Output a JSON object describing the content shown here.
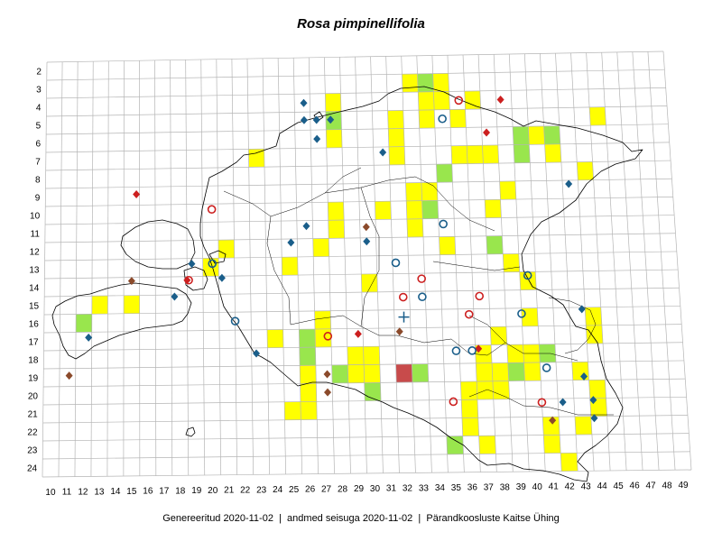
{
  "title": "Rosa pimpinellifolia",
  "footer": {
    "generated": "Genereeritud 2020-11-02",
    "data_state": "andmed seisuga 2020-11-02",
    "publisher": "Pärandkoosluste Kaitse Ühing"
  },
  "grid": {
    "row_labels": [
      "2",
      "3",
      "4",
      "5",
      "6",
      "7",
      "8",
      "9",
      "10",
      "11",
      "12",
      "13",
      "14",
      "15",
      "16",
      "17",
      "18",
      "19",
      "20",
      "21",
      "22",
      "23",
      "24"
    ],
    "col_labels": [
      "10",
      "11",
      "12",
      "13",
      "14",
      "15",
      "16",
      "17",
      "18",
      "19",
      "20",
      "21",
      "22",
      "23",
      "24",
      "25",
      "26",
      "27",
      "28",
      "29",
      "30",
      "31",
      "32",
      "33",
      "34",
      "35",
      "36",
      "37",
      "38",
      "39",
      "40",
      "41",
      "42",
      "43",
      "44",
      "45",
      "46",
      "47",
      "48",
      "49"
    ]
  },
  "colors": {
    "yellow": "#ffff00",
    "green": "#99e64d",
    "red_cell": "#c84b4b",
    "blue": "#1a5e8a",
    "red": "#cc1f1f",
    "brown": "#8b4a2b",
    "grid_line": "#b5b5b5",
    "outline": "#000000"
  },
  "cells": [
    {
      "col": 34,
      "row": 3,
      "fill": "green"
    },
    {
      "col": 35,
      "row": 3,
      "fill": "yellow"
    },
    {
      "col": 33,
      "row": 3,
      "fill": "yellow"
    },
    {
      "col": 28,
      "row": 4,
      "fill": "yellow"
    },
    {
      "col": 37,
      "row": 4,
      "fill": "yellow"
    },
    {
      "col": 34,
      "row": 4,
      "fill": "yellow"
    },
    {
      "col": 35,
      "row": 4,
      "fill": "yellow"
    },
    {
      "col": 28,
      "row": 5,
      "fill": "green"
    },
    {
      "col": 32,
      "row": 5,
      "fill": "yellow"
    },
    {
      "col": 34,
      "row": 5,
      "fill": "yellow"
    },
    {
      "col": 36,
      "row": 5,
      "fill": "yellow"
    },
    {
      "col": 45,
      "row": 5,
      "fill": "yellow"
    },
    {
      "col": 28,
      "row": 6,
      "fill": "yellow"
    },
    {
      "col": 32,
      "row": 6,
      "fill": "yellow"
    },
    {
      "col": 41,
      "row": 6,
      "fill": "yellow"
    },
    {
      "col": 42,
      "row": 6,
      "fill": "green"
    },
    {
      "col": 40,
      "row": 6,
      "fill": "green"
    },
    {
      "col": 23,
      "row": 7,
      "fill": "yellow"
    },
    {
      "col": 32,
      "row": 7,
      "fill": "yellow"
    },
    {
      "col": 36,
      "row": 7,
      "fill": "yellow"
    },
    {
      "col": 37,
      "row": 7,
      "fill": "yellow"
    },
    {
      "col": 38,
      "row": 7,
      "fill": "yellow"
    },
    {
      "col": 40,
      "row": 7,
      "fill": "green"
    },
    {
      "col": 42,
      "row": 7,
      "fill": "yellow"
    },
    {
      "col": 35,
      "row": 8,
      "fill": "green"
    },
    {
      "col": 44,
      "row": 8,
      "fill": "yellow"
    },
    {
      "col": 33,
      "row": 9,
      "fill": "yellow"
    },
    {
      "col": 34,
      "row": 9,
      "fill": "yellow"
    },
    {
      "col": 39,
      "row": 9,
      "fill": "yellow"
    },
    {
      "col": 28,
      "row": 10,
      "fill": "yellow"
    },
    {
      "col": 31,
      "row": 10,
      "fill": "yellow"
    },
    {
      "col": 33,
      "row": 10,
      "fill": "yellow"
    },
    {
      "col": 34,
      "row": 10,
      "fill": "green"
    },
    {
      "col": 38,
      "row": 10,
      "fill": "yellow"
    },
    {
      "col": 28,
      "row": 11,
      "fill": "yellow"
    },
    {
      "col": 33,
      "row": 11,
      "fill": "yellow"
    },
    {
      "col": 21,
      "row": 12,
      "fill": "yellow"
    },
    {
      "col": 27,
      "row": 12,
      "fill": "yellow"
    },
    {
      "col": 35,
      "row": 12,
      "fill": "yellow"
    },
    {
      "col": 38,
      "row": 12,
      "fill": "green"
    },
    {
      "col": 20,
      "row": 13,
      "fill": "yellow"
    },
    {
      "col": 25,
      "row": 13,
      "fill": "yellow"
    },
    {
      "col": 39,
      "row": 13,
      "fill": "yellow"
    },
    {
      "col": 30,
      "row": 14,
      "fill": "yellow"
    },
    {
      "col": 40,
      "row": 14,
      "fill": "yellow"
    },
    {
      "col": 13,
      "row": 15,
      "fill": "yellow"
    },
    {
      "col": 15,
      "row": 15,
      "fill": "yellow"
    },
    {
      "col": 12,
      "row": 16,
      "fill": "green"
    },
    {
      "col": 27,
      "row": 16,
      "fill": "yellow"
    },
    {
      "col": 40,
      "row": 16,
      "fill": "yellow"
    },
    {
      "col": 44,
      "row": 16,
      "fill": "yellow"
    },
    {
      "col": 24,
      "row": 17,
      "fill": "yellow"
    },
    {
      "col": 26,
      "row": 17,
      "fill": "green"
    },
    {
      "col": 27,
      "row": 17,
      "fill": "yellow"
    },
    {
      "col": 38,
      "row": 17,
      "fill": "yellow"
    },
    {
      "col": 44,
      "row": 17,
      "fill": "yellow"
    },
    {
      "col": 26,
      "row": 18,
      "fill": "green"
    },
    {
      "col": 29,
      "row": 18,
      "fill": "yellow"
    },
    {
      "col": 30,
      "row": 18,
      "fill": "yellow"
    },
    {
      "col": 37,
      "row": 18,
      "fill": "yellow"
    },
    {
      "col": 39,
      "row": 18,
      "fill": "yellow"
    },
    {
      "col": 40,
      "row": 18,
      "fill": "yellow"
    },
    {
      "col": 41,
      "row": 18,
      "fill": "green"
    },
    {
      "col": 26,
      "row": 19,
      "fill": "yellow"
    },
    {
      "col": 28,
      "row": 19,
      "fill": "green"
    },
    {
      "col": 29,
      "row": 19,
      "fill": "yellow"
    },
    {
      "col": 30,
      "row": 19,
      "fill": "yellow"
    },
    {
      "col": 32,
      "row": 19,
      "fill": "red_cell"
    },
    {
      "col": 33,
      "row": 19,
      "fill": "green"
    },
    {
      "col": 37,
      "row": 19,
      "fill": "yellow"
    },
    {
      "col": 38,
      "row": 19,
      "fill": "yellow"
    },
    {
      "col": 39,
      "row": 19,
      "fill": "green"
    },
    {
      "col": 40,
      "row": 19,
      "fill": "yellow"
    },
    {
      "col": 43,
      "row": 19,
      "fill": "yellow"
    },
    {
      "col": 26,
      "row": 20,
      "fill": "yellow"
    },
    {
      "col": 30,
      "row": 20,
      "fill": "green"
    },
    {
      "col": 36,
      "row": 20,
      "fill": "yellow"
    },
    {
      "col": 37,
      "row": 20,
      "fill": "yellow"
    },
    {
      "col": 38,
      "row": 20,
      "fill": "yellow"
    },
    {
      "col": 44,
      "row": 20,
      "fill": "yellow"
    },
    {
      "col": 25,
      "row": 21,
      "fill": "yellow"
    },
    {
      "col": 26,
      "row": 21,
      "fill": "yellow"
    },
    {
      "col": 36,
      "row": 21,
      "fill": "yellow"
    },
    {
      "col": 44,
      "row": 21,
      "fill": "yellow"
    },
    {
      "col": 36,
      "row": 22,
      "fill": "yellow"
    },
    {
      "col": 41,
      "row": 22,
      "fill": "yellow"
    },
    {
      "col": 43,
      "row": 22,
      "fill": "yellow"
    },
    {
      "col": 35,
      "row": 23,
      "fill": "green"
    },
    {
      "col": 37,
      "row": 23,
      "fill": "yellow"
    },
    {
      "col": 41,
      "row": 23,
      "fill": "yellow"
    },
    {
      "col": 42,
      "row": 24,
      "fill": "yellow"
    }
  ],
  "markers": [
    {
      "col": 26.6,
      "row": 4.5,
      "shape": "diamond",
      "color": "blue"
    },
    {
      "col": 26.6,
      "row": 5.45,
      "shape": "diamond",
      "color": "blue"
    },
    {
      "col": 27.4,
      "row": 5.45,
      "shape": "diamond",
      "color": "blue"
    },
    {
      "col": 28.3,
      "row": 5.45,
      "shape": "diamond",
      "color": "blue"
    },
    {
      "col": 27.4,
      "row": 6.5,
      "shape": "diamond",
      "color": "blue"
    },
    {
      "col": 31.6,
      "row": 7.3,
      "shape": "diamond",
      "color": "blue"
    },
    {
      "col": 43.4,
      "row": 9.2,
      "shape": "diamond",
      "color": "blue"
    },
    {
      "col": 26.6,
      "row": 11.3,
      "shape": "diamond",
      "color": "blue"
    },
    {
      "col": 25.6,
      "row": 12.2,
      "shape": "diamond",
      "color": "blue"
    },
    {
      "col": 30.4,
      "row": 12.2,
      "shape": "diamond",
      "color": "blue"
    },
    {
      "col": 19.3,
      "row": 13.3,
      "shape": "diamond",
      "color": "blue"
    },
    {
      "col": 21.2,
      "row": 14.1,
      "shape": "diamond",
      "color": "blue"
    },
    {
      "col": 18.2,
      "row": 15.1,
      "shape": "diamond",
      "color": "blue"
    },
    {
      "col": 12.8,
      "row": 17.3,
      "shape": "diamond",
      "color": "blue"
    },
    {
      "col": 23.3,
      "row": 18.3,
      "shape": "diamond",
      "color": "blue"
    },
    {
      "col": 43.8,
      "row": 16.1,
      "shape": "diamond",
      "color": "blue"
    },
    {
      "col": 43.7,
      "row": 19.8,
      "shape": "diamond",
      "color": "blue"
    },
    {
      "col": 42.3,
      "row": 21.2,
      "shape": "diamond",
      "color": "blue"
    },
    {
      "col": 44.2,
      "row": 21.1,
      "shape": "diamond",
      "color": "blue"
    },
    {
      "col": 44.2,
      "row": 22.1,
      "shape": "diamond",
      "color": "blue"
    },
    {
      "col": 39.3,
      "row": 4.5,
      "shape": "diamond",
      "color": "red"
    },
    {
      "col": 38.3,
      "row": 6.3,
      "shape": "diamond",
      "color": "red"
    },
    {
      "col": 15.8,
      "row": 9.4,
      "shape": "diamond",
      "color": "red"
    },
    {
      "col": 19.0,
      "row": 14.2,
      "shape": "diamond",
      "color": "red"
    },
    {
      "col": 29.7,
      "row": 17.3,
      "shape": "diamond",
      "color": "red"
    },
    {
      "col": 37.2,
      "row": 18.2,
      "shape": "diamond",
      "color": "red"
    },
    {
      "col": 30.4,
      "row": 11.4,
      "shape": "diamond",
      "color": "brown"
    },
    {
      "col": 15.5,
      "row": 14.2,
      "shape": "diamond",
      "color": "brown"
    },
    {
      "col": 32.3,
      "row": 17.2,
      "shape": "diamond",
      "color": "brown"
    },
    {
      "col": 27.7,
      "row": 19.5,
      "shape": "diamond",
      "color": "brown"
    },
    {
      "col": 27.7,
      "row": 20.5,
      "shape": "diamond",
      "color": "brown"
    },
    {
      "col": 11.6,
      "row": 19.4,
      "shape": "diamond",
      "color": "brown"
    },
    {
      "col": 41.6,
      "row": 22.2,
      "shape": "diamond",
      "color": "brown"
    },
    {
      "col": 36.6,
      "row": 4.5,
      "shape": "circle",
      "color": "red"
    },
    {
      "col": 20.6,
      "row": 10.3,
      "shape": "circle",
      "color": "red"
    },
    {
      "col": 33.8,
      "row": 14.3,
      "shape": "circle",
      "color": "red"
    },
    {
      "col": 32.6,
      "row": 15.3,
      "shape": "circle",
      "color": "red"
    },
    {
      "col": 37.4,
      "row": 15.3,
      "shape": "circle",
      "color": "red"
    },
    {
      "col": 36.7,
      "row": 16.3,
      "shape": "circle",
      "color": "red"
    },
    {
      "col": 27.8,
      "row": 17.4,
      "shape": "circle",
      "color": "red"
    },
    {
      "col": 35.5,
      "row": 21.1,
      "shape": "circle",
      "color": "red"
    },
    {
      "col": 41.0,
      "row": 21.2,
      "shape": "circle",
      "color": "red"
    },
    {
      "col": 19.1,
      "row": 14.2,
      "shape": "circle",
      "color": "red"
    },
    {
      "col": 35.5,
      "row": 5.5,
      "shape": "circle",
      "color": "blue"
    },
    {
      "col": 35.3,
      "row": 11.3,
      "shape": "circle",
      "color": "blue"
    },
    {
      "col": 32.2,
      "row": 13.4,
      "shape": "circle",
      "color": "blue"
    },
    {
      "col": 20.6,
      "row": 13.3,
      "shape": "circle",
      "color": "blue"
    },
    {
      "col": 33.8,
      "row": 15.3,
      "shape": "circle",
      "color": "blue"
    },
    {
      "col": 40.5,
      "row": 14.2,
      "shape": "circle",
      "color": "blue"
    },
    {
      "col": 22.0,
      "row": 16.5,
      "shape": "circle",
      "color": "blue"
    },
    {
      "col": 40.0,
      "row": 16.3,
      "shape": "circle",
      "color": "blue"
    },
    {
      "col": 35.8,
      "row": 18.3,
      "shape": "circle",
      "color": "blue"
    },
    {
      "col": 36.8,
      "row": 18.3,
      "shape": "circle",
      "color": "blue"
    },
    {
      "col": 41.4,
      "row": 19.3,
      "shape": "circle",
      "color": "blue"
    },
    {
      "col": 32.6,
      "row": 16.4,
      "shape": "plus",
      "color": "blue"
    }
  ]
}
